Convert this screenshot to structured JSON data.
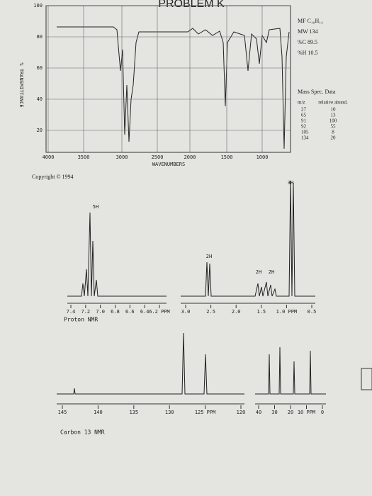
{
  "header": {
    "title": "PROBLEM K"
  },
  "ir": {
    "y_axis_label": "% TRANSMITTANCE",
    "y_ticks": [
      "100",
      "80",
      "60",
      "40",
      "20"
    ],
    "x_ticks": [
      "4000",
      "3500",
      "3000",
      "2500",
      "2000",
      "1500",
      "1000"
    ],
    "x_axis_label": "WAVENUMBERS"
  },
  "info": [
    "MF C₁₀H₁₄",
    "MW 134",
    "%C 89.5",
    "%H 10.5"
  ],
  "mass_spec": {
    "title": "Mass Spec. Data",
    "headers": [
      "m/z",
      "relative abund."
    ],
    "rows": [
      [
        "27",
        "10"
      ],
      [
        "65",
        "13"
      ],
      [
        "91",
        "100"
      ],
      [
        "92",
        "55"
      ],
      [
        "105",
        "8"
      ],
      [
        "134",
        "20"
      ]
    ]
  },
  "copyright": "Copyright © 1994",
  "proton_nmr": {
    "label": "Proton NMR",
    "integrations": [
      "5H",
      "2H",
      "2H",
      "2H",
      "3H"
    ],
    "left_ticks": [
      "7.4",
      "7.2",
      "7.0",
      "6.8",
      "6.6",
      "6.4",
      "6.2 PPM"
    ],
    "right_ticks": [
      "3.0",
      "2.5",
      "2.0",
      "1.5",
      "1.0 PPM",
      "0.5"
    ]
  },
  "carbon_nmr": {
    "label": "Carbon 13 NMR",
    "left_ticks": [
      "145",
      "140",
      "135",
      "130",
      "125 PPM",
      "120"
    ],
    "right_ticks": [
      "40",
      "30",
      "20",
      "10 PPM",
      "0"
    ]
  }
}
